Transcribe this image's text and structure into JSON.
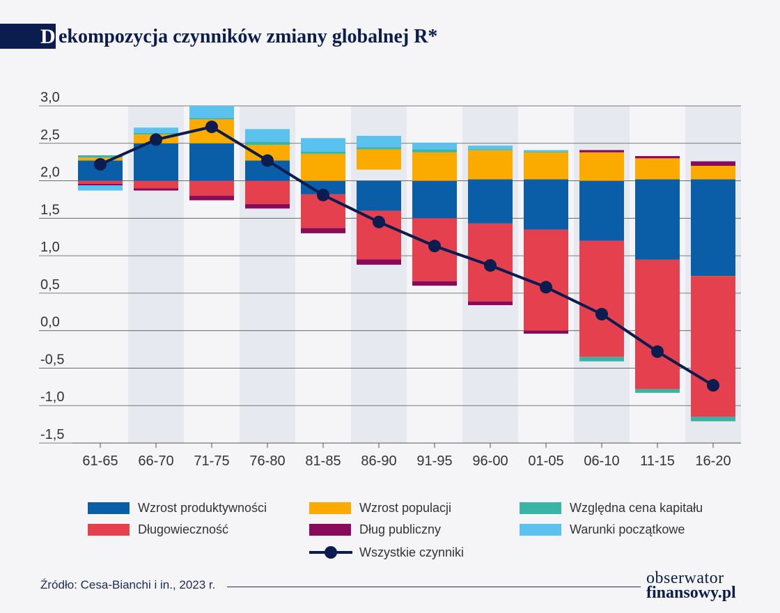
{
  "header": {
    "title_cap": "D",
    "title_rest": "ekompozycja czynników zmiany globalnej R*"
  },
  "chart_data": {
    "type": "bar",
    "stacked": true,
    "title": "Dekompozycja czynników zmiany globalnej R*",
    "categories": [
      "61-65",
      "66-70",
      "71-75",
      "76-80",
      "81-85",
      "86-90",
      "91-95",
      "96-00",
      "01-05",
      "06-10",
      "11-15",
      "16-20"
    ],
    "ylim": [
      -1.6,
      3.0
    ],
    "yticks": [
      3.0,
      2.5,
      2.0,
      1.5,
      1.0,
      0.5,
      0.0,
      -0.5,
      -1.0,
      -1.5
    ],
    "ytick_labels": [
      "3,0",
      "2,5",
      "2,0",
      "1,5",
      "1,0",
      "0,5",
      "0,0",
      "-0,5",
      "-1,0",
      "-1,5"
    ],
    "baseline": 2.0,
    "grid": true,
    "legend_position": "bottom",
    "series": [
      {
        "name": "Wzrost produktywności",
        "color": "#0a5ea8",
        "segments": [
          [
            2.0,
            2.27
          ],
          [
            2.0,
            2.5
          ],
          [
            2.0,
            2.5
          ],
          [
            2.0,
            2.27
          ],
          [
            1.82,
            2.0
          ],
          [
            1.6,
            2.0
          ],
          [
            1.5,
            2.0
          ],
          [
            1.43,
            2.02
          ],
          [
            1.35,
            2.02
          ],
          [
            1.2,
            2.0
          ],
          [
            0.95,
            2.02
          ],
          [
            0.73,
            2.02
          ]
        ]
      },
      {
        "name": "Wzrost populacji",
        "color": "#fbab00",
        "segments": [
          [
            2.27,
            2.31
          ],
          [
            2.5,
            2.62
          ],
          [
            2.5,
            2.82
          ],
          [
            2.27,
            2.48
          ],
          [
            2.0,
            2.36
          ],
          [
            2.15,
            2.42
          ],
          [
            2.0,
            2.38
          ],
          [
            2.02,
            2.41
          ],
          [
            2.02,
            2.38
          ],
          [
            2.0,
            2.38
          ],
          [
            2.02,
            2.3
          ],
          [
            2.02,
            2.2
          ]
        ]
      },
      {
        "name": "Względna cena kapitału",
        "color": "#3ab5a5",
        "segments": [
          [
            2.31,
            2.34
          ],
          [
            2.62,
            2.64
          ],
          [
            2.82,
            2.84
          ],
          [
            2.48,
            2.52
          ],
          [
            2.36,
            2.39
          ],
          [
            2.42,
            2.45
          ],
          [
            2.38,
            2.42
          ],
          [
            2.41,
            2.42
          ],
          [
            2.38,
            2.39
          ],
          [
            -0.35,
            -0.41
          ],
          [
            -0.78,
            -0.83
          ],
          [
            -1.15,
            -1.21
          ]
        ]
      },
      {
        "name": "Długowieczność",
        "color": "#e5404e",
        "segments": [
          [
            2.0,
            1.96
          ],
          [
            2.0,
            1.9
          ],
          [
            2.0,
            1.8
          ],
          [
            2.0,
            1.69
          ],
          [
            1.82,
            1.37
          ],
          [
            1.6,
            0.95
          ],
          [
            1.5,
            0.66
          ],
          [
            1.43,
            0.39
          ],
          [
            1.35,
            0.0
          ],
          [
            1.2,
            -0.35
          ],
          [
            0.95,
            -0.78
          ],
          [
            0.73,
            -1.15
          ]
        ]
      },
      {
        "name": "Dług publiczny",
        "color": "#8a0a5a",
        "segments": [
          [
            1.96,
            1.94
          ],
          [
            1.9,
            1.87
          ],
          [
            1.8,
            1.74
          ],
          [
            1.69,
            1.63
          ],
          [
            1.37,
            1.3
          ],
          [
            0.95,
            0.88
          ],
          [
            0.66,
            0.6
          ],
          [
            0.39,
            0.34
          ],
          [
            0.0,
            -0.04
          ],
          [
            2.38,
            2.41
          ],
          [
            2.3,
            2.33
          ],
          [
            2.2,
            2.26
          ]
        ]
      },
      {
        "name": "Warunki początkowe",
        "color": "#5bc1ef",
        "segments": [
          [
            1.94,
            1.87
          ],
          [
            2.64,
            2.71
          ],
          [
            2.84,
            3.0
          ],
          [
            2.52,
            2.69
          ],
          [
            2.39,
            2.57
          ],
          [
            2.45,
            2.6
          ],
          [
            2.42,
            2.51
          ],
          [
            2.42,
            2.47
          ],
          [
            2.39,
            2.41
          ],
          null,
          null,
          null
        ]
      }
    ],
    "line": {
      "name": "Wszystkie czynniki",
      "color": "#0b1d4f",
      "values": [
        2.22,
        2.55,
        2.72,
        2.27,
        1.81,
        1.45,
        1.13,
        0.87,
        0.58,
        0.22,
        -0.28,
        -0.73
      ]
    }
  },
  "legend": {
    "items": [
      {
        "label": "Wzrost produktywności",
        "color": "#0a5ea8"
      },
      {
        "label": "Wzrost populacji",
        "color": "#fbab00"
      },
      {
        "label": "Względna cena kapitału",
        "color": "#3ab5a5"
      },
      {
        "label": "Długowieczność",
        "color": "#e5404e"
      },
      {
        "label": "Dług publiczny",
        "color": "#8a0a5a"
      },
      {
        "label": "Warunki początkowe",
        "color": "#5bc1ef"
      },
      {
        "label": "Wszystkie czynniki",
        "color": "#0b1d4f"
      }
    ]
  },
  "footer": {
    "source": "Źródło: Cesa-Bianchi i in., 2023 r.",
    "logo_top": "obserwator",
    "logo_bottom": "finansowy.pl"
  }
}
